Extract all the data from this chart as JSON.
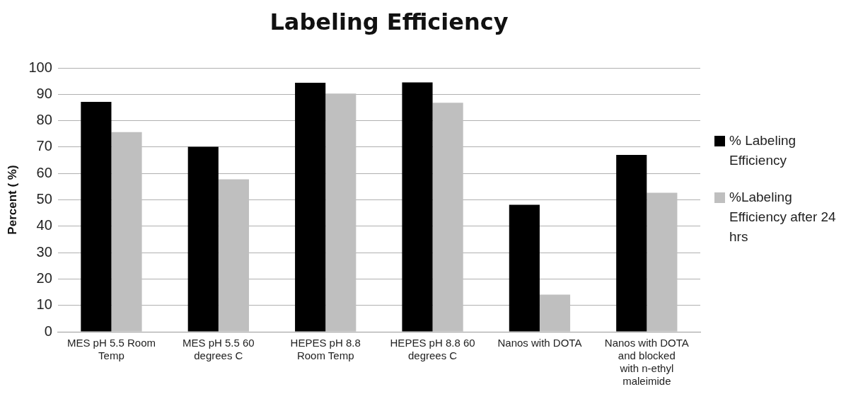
{
  "chart_data": {
    "type": "bar",
    "title": "Labeling Efficiency",
    "ylabel": "Percent ( %)",
    "categories": [
      "MES pH 5.5 Room Temp",
      "MES pH 5.5 60 degrees C",
      "HEPES pH 8.8 Room Temp",
      "HEPES pH 8.8 60 degrees C",
      "Nanos with DOTA",
      "Nanos with DOTA and blocked with n-ethyl maleimide"
    ],
    "series": [
      {
        "name": "% Labeling Efficiency",
        "color": "#000000",
        "values": [
          87.1,
          70.1,
          94.4,
          94.5,
          48.1,
          67
        ]
      },
      {
        "name": "%Labeling Efficiency after 24 hrs",
        "color": "#bfbfbf",
        "values": [
          75.7,
          57.8,
          90.3,
          86.8,
          14.1,
          52.7
        ]
      }
    ],
    "ylim": [
      0,
      100
    ],
    "yticks": [
      0,
      10,
      20,
      30,
      40,
      50,
      60,
      70,
      80,
      90,
      100
    ],
    "grid": "y",
    "legend": "right"
  }
}
